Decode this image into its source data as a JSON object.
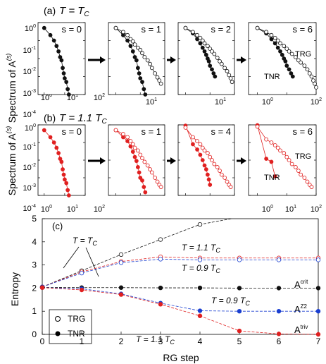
{
  "panel_a": {
    "label": "(a)",
    "condition": "T = T",
    "condition_sub": "C",
    "ylabel": "Spectrum of A",
    "ylabel_sup": "(s)",
    "yticks": [
      "10",
      "10",
      "10",
      "10",
      "10"
    ],
    "ytick_exps": [
      "0",
      "-1",
      "-2",
      "-3",
      "-4"
    ],
    "xticks": [
      "10",
      "10",
      "10"
    ],
    "xtick_exps": [
      "0",
      "1",
      "2"
    ]
  },
  "panel_b": {
    "label": "(b)",
    "condition": "T = 1.1 T",
    "condition_sub": "C",
    "ylabel": "Spectrum of A",
    "ylabel_sup": "(s)",
    "yticks": [
      "10",
      "10",
      "10",
      "10",
      "10"
    ],
    "ytick_exps": [
      "0",
      "-1",
      "-2",
      "-3",
      "-4"
    ],
    "xticks": [
      "10",
      "10",
      "10"
    ],
    "xtick_exps": [
      "0",
      "1",
      "2"
    ]
  },
  "panel_c": {
    "label": "(c)",
    "xlabel": "RG step",
    "ylabel": "Entropy",
    "xticks": [
      "0",
      "1",
      "2",
      "3",
      "4",
      "5",
      "6",
      "7"
    ],
    "yticks": [
      "0",
      "1",
      "2",
      "3",
      "4",
      "5"
    ],
    "legend": [
      "TRG",
      "TNR"
    ],
    "annotations": {
      "t_tc": "T = T",
      "t_tc_sub": "C",
      "t11_top": "T = 1.1 T",
      "t11_top_sub": "C",
      "t09_top": "T = 0.9 T",
      "t09_top_sub": "C",
      "t09_mid": "T = 0.9 T",
      "t09_mid_sub": "C",
      "t11_bot": "T = 1.1 T",
      "t11_bot_sub": "C",
      "a_crit": "A",
      "a_crit_sup": "crit",
      "a_z2": "A",
      "a_z2_sup": "Z2",
      "a_triv": "A",
      "a_triv_sup": "triv"
    }
  },
  "colors": {
    "critical": "#111111",
    "high_t": "#e02020",
    "low_t": "#1a3fd0"
  },
  "chart_data": [
    {
      "type": "line",
      "panel": "a",
      "scale": "log-log",
      "xlim": [
        0.5,
        100
      ],
      "ylim": [
        0.0001,
        1
      ],
      "subplots": [
        {
          "label": "s = 0",
          "series": [
            {
              "name": "",
              "marker": "filled",
              "x": [
                1,
                2,
                3,
                4,
                5,
                6,
                7,
                8,
                9,
                10,
                12,
                14,
                16
              ],
              "y": [
                0.5,
                0.2,
                0.1,
                0.05,
                0.025,
                0.012,
                0.008,
                0.003,
                0.0015,
                0.0008,
                0.0005,
                0.0002,
                0.0001
              ]
            }
          ]
        },
        {
          "label": "s = 1",
          "series": [
            {
              "name": "",
              "marker": "filled",
              "x": [
                1,
                2,
                3,
                4,
                5,
                6,
                7,
                8,
                9,
                10,
                12,
                14,
                16
              ],
              "y": [
                0.5,
                0.2,
                0.1,
                0.05,
                0.025,
                0.012,
                0.008,
                0.003,
                0.0015,
                0.0008,
                0.0005,
                0.0002,
                0.0001
              ]
            },
            {
              "name": "",
              "marker": "open",
              "x": [
                1,
                2,
                3,
                4,
                5,
                6,
                8,
                10,
                12,
                15,
                20,
                25,
                30,
                40,
                50,
                60,
                70
              ],
              "y": [
                0.5,
                0.3,
                0.2,
                0.12,
                0.09,
                0.06,
                0.04,
                0.03,
                0.02,
                0.012,
                0.008,
                0.005,
                0.003,
                0.0015,
                0.0009,
                0.0006,
                0.0004
              ]
            }
          ]
        },
        {
          "label": "s = 2",
          "series": [
            {
              "name": "",
              "marker": "filled",
              "x": [
                1,
                2,
                3,
                4,
                5,
                6,
                7,
                8,
                9,
                10,
                12,
                14,
                16
              ],
              "y": [
                0.5,
                0.25,
                0.12,
                0.07,
                0.04,
                0.025,
                0.016,
                0.01,
                0.007,
                0.004,
                0.0025,
                0.0015,
                0.001
              ]
            },
            {
              "name": "",
              "marker": "open",
              "x": [
                1,
                2,
                3,
                4,
                5,
                6,
                8,
                10,
                12,
                15,
                20,
                25,
                30,
                40,
                50,
                60,
                70,
                80
              ],
              "y": [
                0.5,
                0.3,
                0.2,
                0.14,
                0.1,
                0.07,
                0.05,
                0.035,
                0.025,
                0.018,
                0.011,
                0.007,
                0.005,
                0.003,
                0.002,
                0.0012,
                0.0008,
                0.0005
              ]
            }
          ]
        },
        {
          "label": "s = 6",
          "series": [
            {
              "name": "TNR",
              "marker": "filled",
              "x": [
                1,
                2,
                3,
                4,
                5,
                6,
                7,
                8,
                9,
                10,
                12,
                14,
                16
              ],
              "y": [
                0.5,
                0.25,
                0.12,
                0.07,
                0.04,
                0.025,
                0.016,
                0.01,
                0.007,
                0.004,
                0.0025,
                0.0015,
                0.001
              ]
            },
            {
              "name": "TRG",
              "marker": "open",
              "x": [
                1,
                2,
                3,
                4,
                5,
                6,
                8,
                10,
                12,
                15,
                20,
                25,
                30,
                40,
                50,
                60,
                70,
                80,
                90,
                100
              ],
              "y": [
                0.5,
                0.3,
                0.2,
                0.14,
                0.1,
                0.07,
                0.05,
                0.035,
                0.025,
                0.018,
                0.012,
                0.008,
                0.006,
                0.004,
                0.0025,
                0.0015,
                0.001,
                0.0006,
                0.0004,
                0.00025
              ]
            }
          ]
        }
      ]
    },
    {
      "type": "line",
      "panel": "b",
      "scale": "log-log",
      "xlim": [
        0.5,
        100
      ],
      "ylim": [
        0.0001,
        1
      ],
      "subplots": [
        {
          "label": "s = 0",
          "series": [
            {
              "name": "",
              "marker": "filled",
              "x": [
                1,
                2,
                3,
                4,
                5,
                6,
                7,
                8,
                9,
                10,
                12,
                14,
                16
              ],
              "y": [
                0.5,
                0.2,
                0.1,
                0.05,
                0.025,
                0.012,
                0.008,
                0.003,
                0.0015,
                0.0008,
                0.0005,
                0.0002,
                0.0001
              ]
            }
          ]
        },
        {
          "label": "s = 1",
          "series": [
            {
              "name": "",
              "marker": "filled",
              "x": [
                1,
                2,
                3,
                4,
                5,
                6,
                7,
                8,
                9,
                10,
                12,
                14,
                16
              ],
              "y": [
                0.5,
                0.2,
                0.12,
                0.06,
                0.03,
                0.015,
                0.009,
                0.004,
                0.002,
                0.001,
                0.0007,
                0.0003,
                0.00015
              ]
            },
            {
              "name": "",
              "marker": "open",
              "x": [
                1,
                2,
                3,
                4,
                5,
                6,
                8,
                10,
                12,
                15,
                20,
                25,
                30,
                40,
                50,
                60,
                70
              ],
              "y": [
                0.5,
                0.3,
                0.2,
                0.12,
                0.08,
                0.05,
                0.035,
                0.02,
                0.013,
                0.008,
                0.005,
                0.003,
                0.002,
                0.001,
                0.0006,
                0.0004,
                0.0003
              ]
            }
          ]
        },
        {
          "label": "s = 4",
          "series": [
            {
              "name": "",
              "marker": "filled",
              "x": [
                1,
                2,
                3,
                4,
                5,
                6,
                7,
                8,
                9,
                10
              ],
              "y": [
                0.9,
                0.08,
                0.04,
                0.02,
                0.01,
                0.005,
                0.003,
                0.0015,
                0.0008,
                0.0004
              ]
            },
            {
              "name": "",
              "marker": "open",
              "x": [
                1,
                2,
                3,
                4,
                5,
                6,
                8,
                10,
                12,
                15,
                20,
                25,
                30,
                40,
                50,
                60,
                70
              ],
              "y": [
                0.7,
                0.2,
                0.12,
                0.08,
                0.05,
                0.035,
                0.025,
                0.015,
                0.01,
                0.006,
                0.004,
                0.0025,
                0.0015,
                0.001,
                0.0006,
                0.0004,
                0.0003
              ]
            }
          ]
        },
        {
          "label": "s = 6",
          "series": [
            {
              "name": "TNR",
              "marker": "filled",
              "x": [
                1,
                2,
                3,
                4
              ],
              "y": [
                0.95,
                0.012,
                0.008,
                0.0012
              ]
            },
            {
              "name": "TRG",
              "marker": "open",
              "x": [
                1,
                2,
                3,
                4,
                5,
                6,
                8,
                10,
                12,
                15,
                20,
                25,
                30,
                40,
                50,
                60,
                70
              ],
              "y": [
                0.8,
                0.15,
                0.1,
                0.07,
                0.05,
                0.035,
                0.025,
                0.015,
                0.01,
                0.006,
                0.004,
                0.0025,
                0.0015,
                0.001,
                0.0006,
                0.0004,
                0.0003
              ]
            }
          ]
        }
      ]
    },
    {
      "type": "line",
      "panel": "c",
      "xlabel": "RG step",
      "ylabel": "Entropy",
      "xlim": [
        0,
        7
      ],
      "ylim": [
        0,
        5
      ],
      "series": [
        {
          "name": "TRG T = T_C",
          "color": "critical",
          "marker": "open",
          "x": [
            0,
            1,
            2,
            3,
            4
          ],
          "y": [
            2.05,
            2.75,
            3.45,
            4.1,
            4.75
          ],
          "extend_to": [
            4.8,
            5.0
          ]
        },
        {
          "name": "TRG T = 1.1 T_C",
          "color": "high_t",
          "marker": "open",
          "x": [
            0,
            1,
            2,
            3,
            4,
            5,
            6,
            7
          ],
          "y": [
            2.05,
            2.7,
            3.15,
            3.35,
            3.3,
            3.3,
            3.3,
            3.3
          ]
        },
        {
          "name": "TRG T = 0.9 T_C",
          "color": "low_t",
          "marker": "open",
          "x": [
            0,
            1,
            2,
            3,
            4,
            5,
            6,
            7
          ],
          "y": [
            2.05,
            2.65,
            3.1,
            3.25,
            3.22,
            3.22,
            3.22,
            3.22
          ]
        },
        {
          "name": "TNR T = T_C",
          "color": "critical",
          "marker": "filled",
          "x": [
            0,
            1,
            2,
            3,
            4,
            5,
            6,
            7
          ],
          "y": [
            2.03,
            2.02,
            2.02,
            2.01,
            2.01,
            2.0,
            2.0,
            2.0
          ]
        },
        {
          "name": "TNR T = 0.9 T_C",
          "color": "low_t",
          "marker": "filled",
          "x": [
            0,
            1,
            2,
            3,
            4,
            5,
            6,
            7
          ],
          "y": [
            2.02,
            1.97,
            1.75,
            1.35,
            1.02,
            1.0,
            1.0,
            1.0
          ]
        },
        {
          "name": "TNR T = 1.1 T_C",
          "color": "high_t",
          "marker": "filled",
          "x": [
            0,
            1,
            2,
            3,
            4,
            5,
            6,
            7
          ],
          "y": [
            2.02,
            1.92,
            1.72,
            1.3,
            0.8,
            0.15,
            0.02,
            0.0
          ]
        }
      ]
    }
  ]
}
